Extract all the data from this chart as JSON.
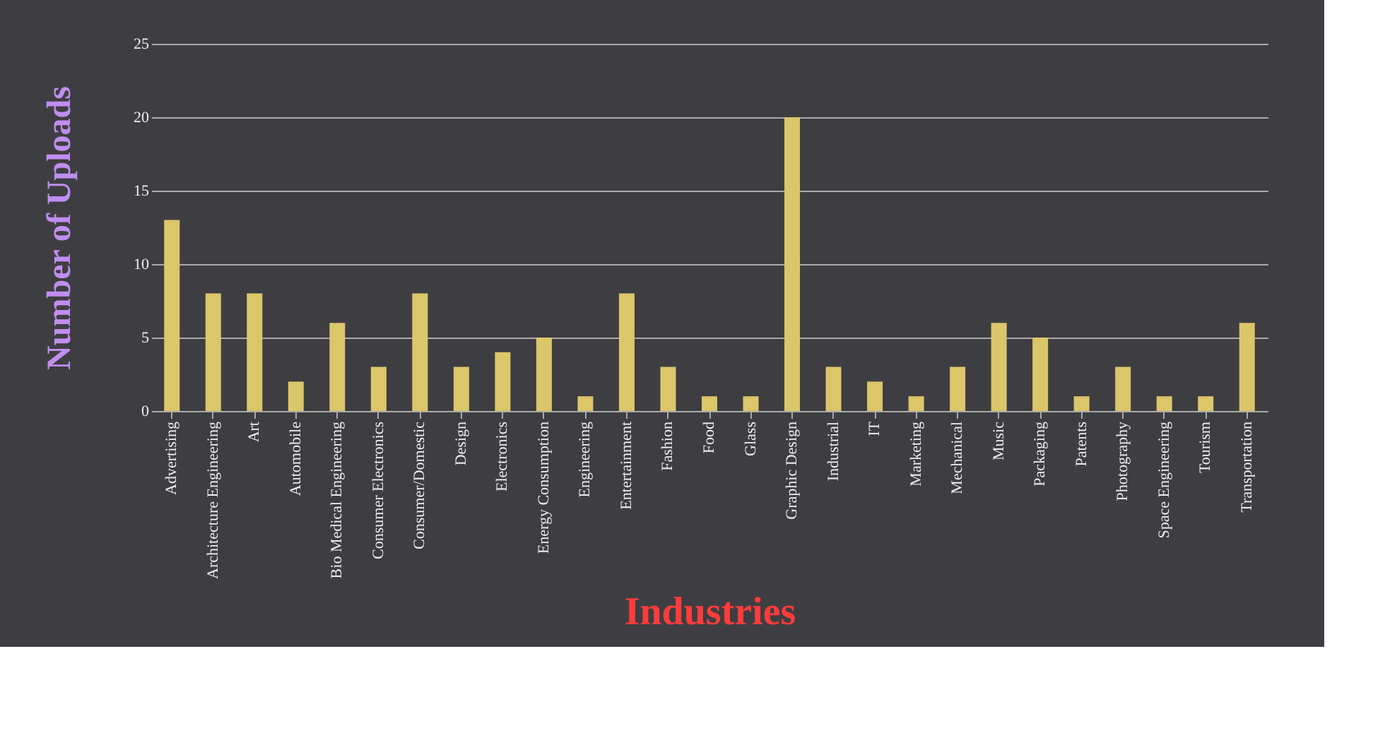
{
  "chart_data": {
    "type": "bar",
    "xlabel": "Industries",
    "ylabel": "Number of Uploads",
    "categories": [
      "Advertising",
      "Architecture Engineering",
      "Art",
      "Automobile",
      "Bio Medical Engineering",
      "Consumer Electronics",
      "Consumer/Domestic",
      "Design",
      "Electronics",
      "Energy Consumption",
      "Engineering",
      "Entertainment",
      "Fashion",
      "Food",
      "Glass",
      "Graphic Design",
      "Industrial",
      "IT",
      "Marketing",
      "Mechanical",
      "Music",
      "Packaging",
      "Patents",
      "Photography",
      "Space Engineering",
      "Tourism",
      "Transportation"
    ],
    "values": [
      13,
      8,
      8,
      2,
      6,
      3,
      8,
      3,
      4,
      5,
      1,
      8,
      3,
      1,
      1,
      20,
      3,
      2,
      1,
      3,
      6,
      5,
      1,
      3,
      1,
      1,
      6
    ],
    "color": "#dcc66a",
    "ylim": [
      0,
      25
    ],
    "yticks": [
      0,
      5,
      10,
      15,
      20,
      25
    ],
    "grid": "y"
  }
}
